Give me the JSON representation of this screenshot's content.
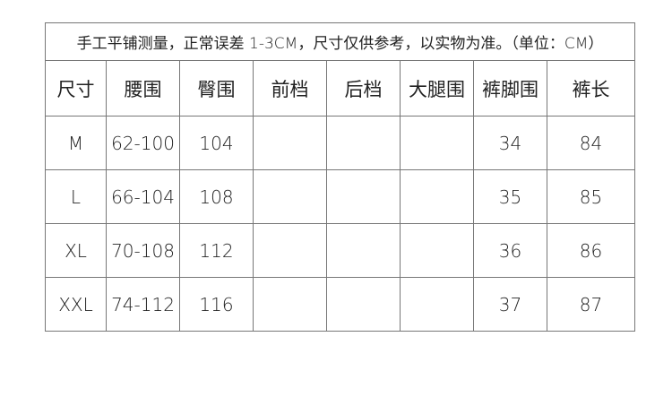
{
  "title": "手工平铺测量，正常误差 1-3CM，尺寸仅供参考，以实物为准。（单位：CM）",
  "headers": [
    "尺寸",
    "腰围",
    "臀围",
    "前档",
    "后档",
    "大腿围",
    "裤脚围",
    "裤长"
  ],
  "rows": [
    [
      "M",
      "62-100",
      "104",
      "",
      "",
      "",
      "34",
      "84"
    ],
    [
      "L",
      "66-104",
      "108",
      "",
      "",
      "",
      "35",
      "85"
    ],
    [
      "XL",
      "70-108",
      "112",
      "",
      "",
      "",
      "36",
      "86"
    ],
    [
      "XXL",
      "74-112",
      "116",
      "",
      "",
      "",
      "37",
      "87"
    ]
  ]
}
